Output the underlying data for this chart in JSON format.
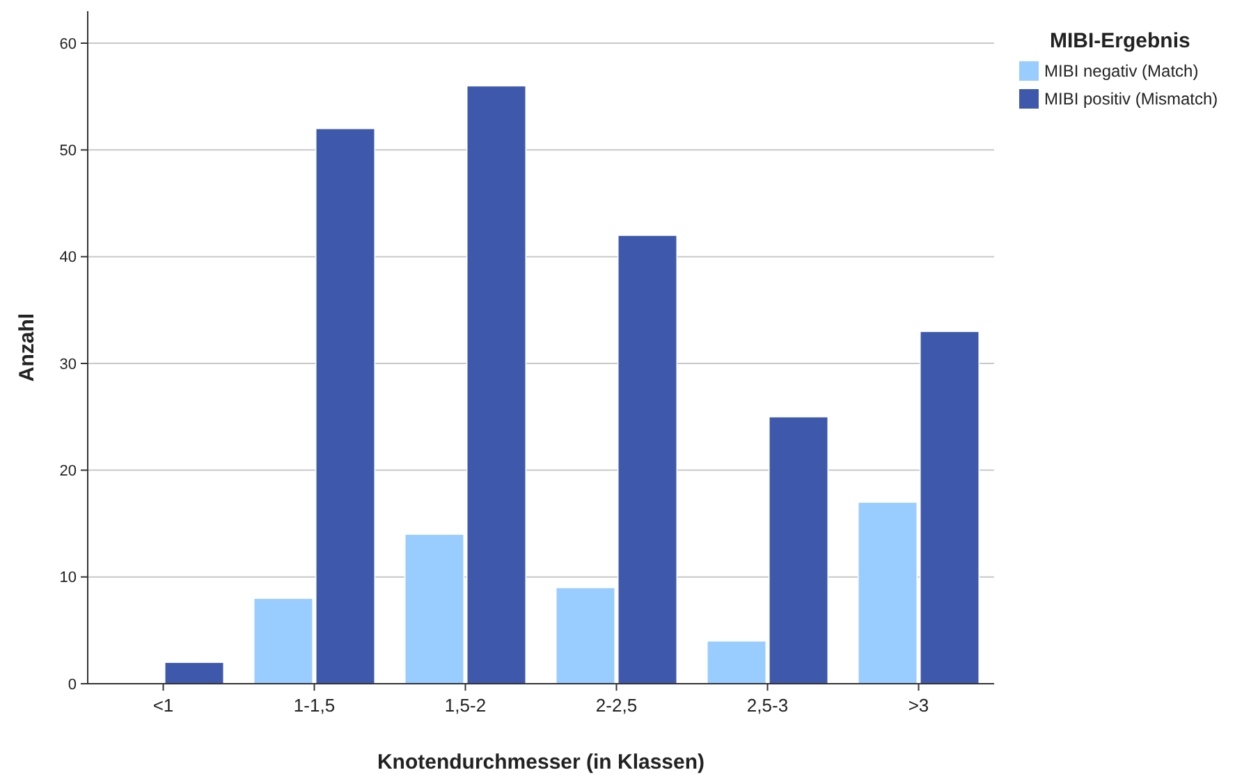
{
  "chart_data": {
    "type": "bar",
    "xlabel": "Knotendurchmesser (in Klassen)",
    "ylabel": "Anzahl",
    "legend_title": "MIBI-Ergebnis",
    "categories": [
      "<1",
      "1-1,5",
      "1,5-2",
      "2-2,5",
      "2,5-3",
      ">3"
    ],
    "series": [
      {
        "name": "MIBI negativ (Match)",
        "color": "#99ccff",
        "values": [
          0,
          8,
          14,
          9,
          4,
          17
        ]
      },
      {
        "name": "MIBI positiv (Mismatch)",
        "color": "#3e58ac",
        "values": [
          2,
          52,
          56,
          42,
          25,
          33
        ]
      }
    ],
    "ylim": [
      0,
      63
    ],
    "yticks": [
      0,
      10,
      20,
      30,
      40,
      50,
      60
    ],
    "grid": "y",
    "legend": "top right"
  }
}
